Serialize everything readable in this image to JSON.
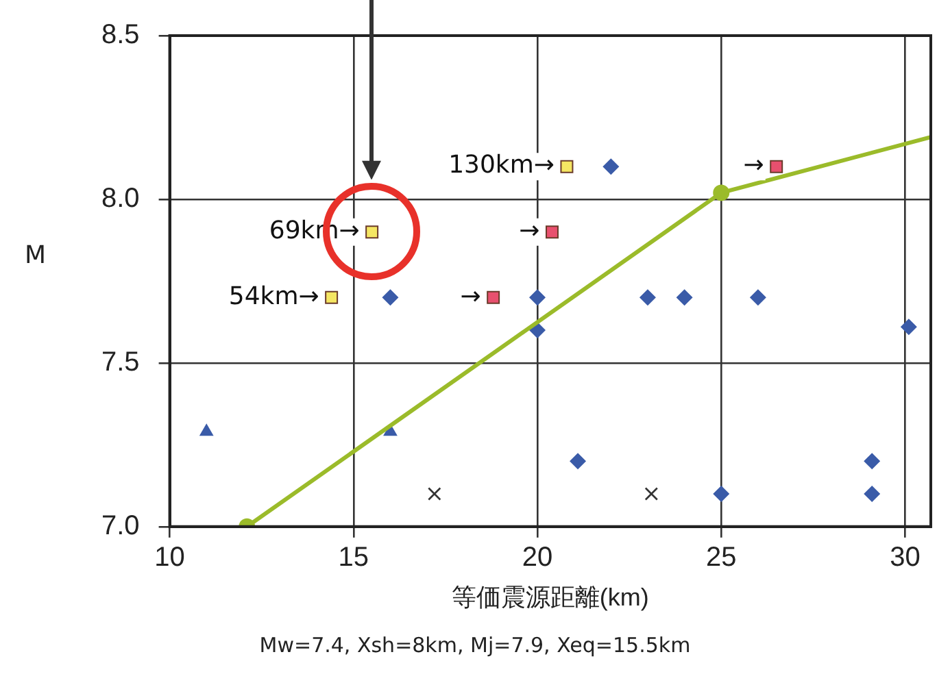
{
  "chart_data": {
    "type": "scatter",
    "xlabel": "等価震源距離(km)",
    "ylabel": "M",
    "xlim": [
      10,
      30.7
    ],
    "xticks": [
      10,
      15,
      20,
      25,
      30
    ],
    "ylim": [
      7.0,
      8.5
    ],
    "yticks": [
      {
        "value": 7,
        "label": "7.0"
      },
      7.5,
      {
        "value": 8,
        "label": "8.0"
      },
      8.5
    ],
    "grid": true,
    "legend": false,
    "series": [
      {
        "type": "line",
        "color": "#9bbb2a",
        "marker": "none",
        "x": [
          12.1,
          25,
          30.7
        ],
        "values": [
          7.0,
          8.02,
          8.19
        ]
      },
      {
        "color": "#9bbb2a",
        "marker": "circle",
        "x": [
          12.1,
          25
        ],
        "values": [
          7.0,
          8.02
        ]
      },
      {
        "color": "#3a5ba8",
        "marker": "diamond",
        "x": [
          16,
          20,
          20,
          22,
          23,
          24,
          26,
          30.1,
          21.1,
          25,
          29.1,
          29.1
        ],
        "values": [
          7.7,
          7.7,
          7.6,
          8.1,
          7.7,
          7.7,
          7.7,
          7.61,
          7.2,
          7.1,
          7.2,
          7.1
        ]
      },
      {
        "color": "#3a5ba8",
        "marker": "triangle",
        "x": [
          11,
          16
        ],
        "values": [
          7.29,
          7.29
        ]
      },
      {
        "color": "#333333",
        "marker": "cross",
        "x": [
          17.2,
          23.1
        ],
        "values": [
          7.1,
          7.1
        ]
      },
      {
        "color": "#f5e663",
        "marker": "square",
        "x": [
          14.4,
          15.5,
          20.8
        ],
        "values": [
          7.7,
          7.9,
          8.1
        ]
      },
      {
        "color": "#e8506e",
        "marker": "square",
        "x": [
          18.8,
          20.4,
          26.5
        ],
        "values": [
          7.7,
          7.9,
          8.1
        ]
      }
    ],
    "annotations": [
      {
        "text": "130km→",
        "x": 20.8,
        "y": 8.1
      },
      {
        "text": "69km→",
        "x": 15.5,
        "y": 7.9
      },
      {
        "text": "54km→",
        "x": 14.4,
        "y": 7.7
      },
      {
        "text": "→",
        "x": 18.8,
        "y": 7.7
      },
      {
        "text": "→",
        "x": 20.4,
        "y": 7.9
      },
      {
        "text": "→",
        "x": 26.5,
        "y": 8.1
      },
      "Mw=7.4, Xsh=8km, Mj=7.9, Xeq=15.5km"
    ]
  }
}
